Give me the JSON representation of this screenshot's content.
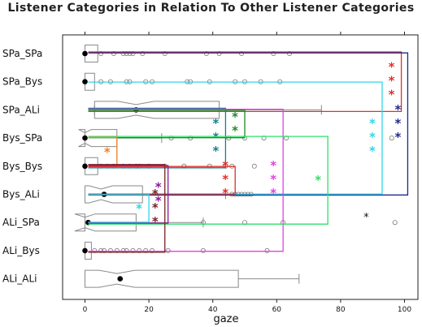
{
  "chart_data": {
    "type": "box",
    "title": "Listener Categories in Relation To Other Listener Categories",
    "xlabel": "gaze",
    "ylabel": "",
    "xlim": [
      -8,
      104
    ],
    "x_ticks": [
      0,
      20,
      40,
      60,
      80,
      100
    ],
    "grid": false,
    "categories": [
      "SPa_SPa",
      "SPa_Bys",
      "SPa_ALi",
      "Bys_SPa",
      "Bys_Bys",
      "Bys_ALi",
      "ALi_SPa",
      "ALi_Bys",
      "ALi_ALi"
    ],
    "boxes": [
      {
        "category": "SPa_SPa",
        "q1": 0,
        "median": 0,
        "q3": 4,
        "whisker_low": 0,
        "whisker_high": 4,
        "mean": 0,
        "outliers": [
          5,
          9,
          12,
          13,
          14,
          15,
          18,
          25,
          38,
          42,
          49,
          59,
          64
        ]
      },
      {
        "category": "SPa_Bys",
        "q1": 0,
        "median": 0,
        "q3": 3,
        "whisker_low": 0,
        "whisker_high": 3,
        "mean": 0,
        "outliers": [
          5,
          8,
          13,
          14,
          19,
          21,
          32,
          33,
          39,
          47,
          50,
          55,
          61
        ]
      },
      {
        "category": "SPa_ALi",
        "q1": 3,
        "median": 16,
        "q3": 42,
        "whisker_low": 0,
        "whisker_high": 74,
        "mean": 16,
        "outliers": []
      },
      {
        "category": "Bys_SPa",
        "q1": 0,
        "median": 0,
        "q3": 10,
        "whisker_low": 0,
        "whisker_high": 24,
        "mean": 0,
        "outliers": [
          27,
          33,
          45,
          50,
          56,
          63,
          96
        ]
      },
      {
        "category": "Bys_Bys",
        "q1": 0,
        "median": 0,
        "q3": 4,
        "whisker_low": 0,
        "whisker_high": 4,
        "mean": 0,
        "outliers": [
          5,
          7,
          9,
          12,
          14,
          16,
          17,
          20,
          25,
          31,
          39,
          44,
          46,
          53
        ]
      },
      {
        "category": "Bys_ALi",
        "q1": 0,
        "median": 5,
        "q3": 18,
        "whisker_low": 0,
        "whisker_high": 44,
        "mean": 6,
        "outliers": [
          46,
          47,
          48,
          49,
          50,
          51,
          52
        ]
      },
      {
        "category": "ALi_SPa",
        "q1": 0,
        "median": 0,
        "q3": 16,
        "whisker_low": 0,
        "whisker_high": 37,
        "mean": 1,
        "outliers": [
          37,
          50,
          62,
          97
        ]
      },
      {
        "category": "ALi_Bys",
        "q1": 0,
        "median": 0,
        "q3": 2,
        "whisker_low": 0,
        "whisker_high": 2,
        "mean": 0,
        "outliers": [
          3,
          5,
          6,
          8,
          10,
          12,
          13,
          15,
          17,
          19,
          21,
          26,
          37,
          57
        ]
      },
      {
        "category": "ALi_ALi",
        "q1": 0,
        "median": 10,
        "q3": 48,
        "whisker_low": 0,
        "whisker_high": 67,
        "mean": 11,
        "outliers": []
      }
    ],
    "comparisons": [
      {
        "from": "SPa_SPa",
        "to": "SPa_ALi",
        "x": 99,
        "color": "#e0302c",
        "label": "***"
      },
      {
        "from": "SPa_SPa",
        "to": "Bys_ALi",
        "x": 101,
        "color": "#1c2a8c",
        "label": "***"
      },
      {
        "from": "SPa_Bys",
        "to": "Bys_ALi",
        "x": 93,
        "color": "#2fd6e8",
        "label": "***"
      },
      {
        "from": "SPa_ALi",
        "to": "Bys_Bys",
        "x": 44,
        "color": "#12808a",
        "label": "***"
      },
      {
        "from": "SPa_ALi",
        "to": "ALi_Bys",
        "x": 62,
        "color": "#e042e0",
        "label": "***"
      },
      {
        "from": "SPa_ALi",
        "to": "Bys_SPa",
        "x": 50,
        "color": "#1c8a2a",
        "label": "**"
      },
      {
        "from": "Bys_SPa",
        "to": "ALi_SPa",
        "x": 76,
        "color": "#2ee06a",
        "label": "*"
      },
      {
        "from": "Bys_SPa",
        "to": "Bys_Bys",
        "x": 10,
        "color": "#f07f22",
        "label": "*"
      },
      {
        "from": "Bys_Bys",
        "to": "Bys_ALi",
        "x": 47,
        "color": "#e0302c",
        "label": "***"
      },
      {
        "from": "Bys_Bys",
        "to": "ALi_Bys",
        "x": 25,
        "color": "#7a2020",
        "label": "***"
      },
      {
        "from": "Bys_Bys",
        "to": "ALi_SPa",
        "x": 26,
        "color": "#8a1a9a",
        "label": "**"
      },
      {
        "from": "Bys_ALi",
        "to": "ALi_SPa",
        "x": 20,
        "color": "#2fd6e8",
        "label": "*"
      }
    ],
    "annotations": [
      {
        "text": "*",
        "x": 88,
        "category": "ALi_SPa"
      }
    ]
  }
}
